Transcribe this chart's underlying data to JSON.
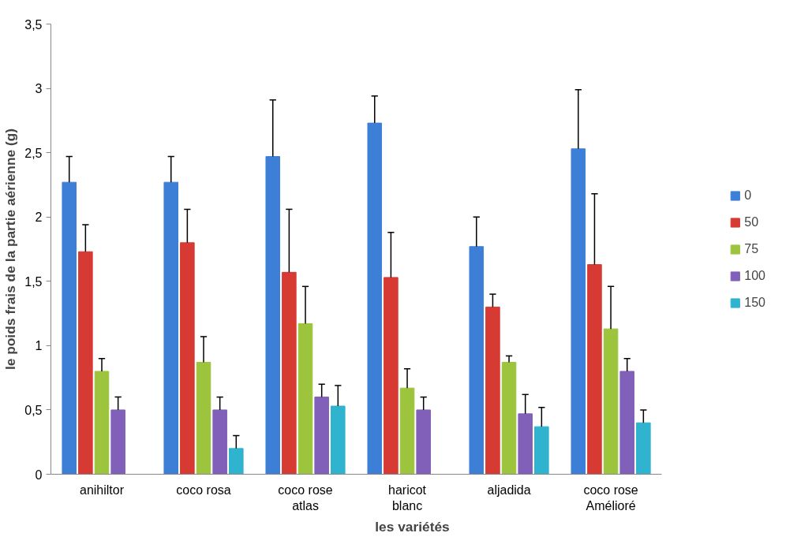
{
  "chart_data": {
    "type": "bar",
    "xlabel": "les variétés",
    "ylabel": "le poids frais de la partie aérienne (g)",
    "categories": [
      "anihiltor",
      "coco rosa",
      "coco rose\natlas",
      "haricot\nblanc",
      "aljadida",
      "coco rose\nAmélioré"
    ],
    "series": [
      {
        "name": "0",
        "color": "#3d7fd6",
        "values": [
          2.27,
          2.27,
          2.47,
          2.73,
          1.77,
          2.53
        ],
        "errors": [
          [
            2.27,
            2.47
          ],
          [
            2.27,
            2.47
          ],
          [
            2.47,
            2.91
          ],
          [
            2.73,
            2.94
          ],
          [
            1.77,
            2.0
          ],
          [
            2.53,
            2.99
          ]
        ]
      },
      {
        "name": "50",
        "color": "#d63a33",
        "values": [
          1.73,
          1.8,
          1.57,
          1.53,
          1.3,
          1.63
        ],
        "errors": [
          [
            1.73,
            1.94
          ],
          [
            1.8,
            2.06
          ],
          [
            1.57,
            2.06
          ],
          [
            1.53,
            1.88
          ],
          [
            1.3,
            1.4
          ],
          [
            1.63,
            2.18
          ]
        ]
      },
      {
        "name": "75",
        "color": "#9cc43d",
        "values": [
          0.8,
          0.87,
          1.17,
          0.67,
          0.87,
          1.13
        ],
        "errors": [
          [
            0.8,
            0.9
          ],
          [
            0.87,
            1.07
          ],
          [
            1.17,
            1.46
          ],
          [
            0.67,
            0.82
          ],
          [
            0.87,
            0.92
          ],
          [
            1.13,
            1.46
          ]
        ]
      },
      {
        "name": "100",
        "color": "#8060b8",
        "values": [
          0.5,
          0.5,
          0.6,
          0.5,
          0.47,
          0.8
        ],
        "errors": [
          [
            0.5,
            0.6
          ],
          [
            0.5,
            0.6
          ],
          [
            0.6,
            0.7
          ],
          [
            0.5,
            0.6
          ],
          [
            0.47,
            0.62
          ],
          [
            0.8,
            0.9
          ]
        ]
      },
      {
        "name": "150",
        "color": "#2fb3cf",
        "values": [
          0,
          0.2,
          0.53,
          0,
          0.37,
          0.4
        ],
        "errors": [
          null,
          [
            0.2,
            0.3
          ],
          [
            0.53,
            0.69
          ],
          null,
          [
            0.37,
            0.52
          ],
          [
            0.4,
            0.5
          ]
        ]
      }
    ],
    "ylim": [
      0,
      3.5
    ],
    "yticks": [
      0,
      {
        "value": 0.5,
        "label": "0,5"
      },
      1,
      {
        "value": 1.5,
        "label": "1,5"
      },
      2,
      {
        "value": 2.5,
        "label": "2,5"
      },
      3,
      {
        "value": 3.5,
        "label": "3,5"
      }
    ],
    "grid": false,
    "legend": "right"
  }
}
